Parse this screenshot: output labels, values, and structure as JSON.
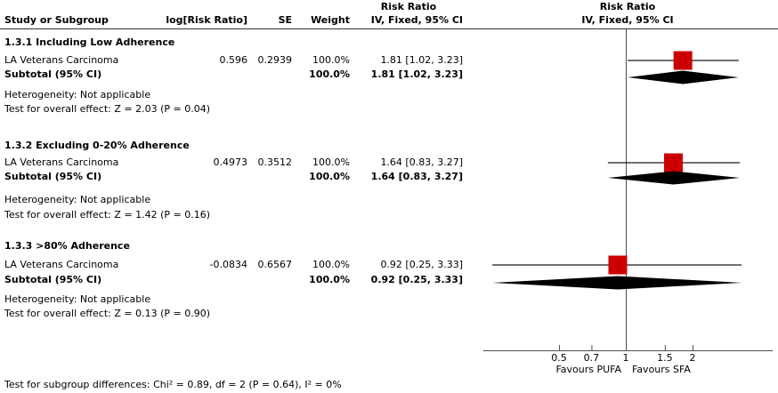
{
  "header": {
    "effect_title": "Risk Ratio",
    "col_study": "Study or Subgroup",
    "col_log_rr": "log[Risk Ratio]",
    "col_se": "SE",
    "col_weight": "Weight",
    "col_ci": "IV, Fixed, 95% CI",
    "plot_title": "Risk Ratio",
    "plot_method": "IV, Fixed, 95% CI"
  },
  "subgroups": [
    {
      "title": "1.3.1 Including Low Adherence",
      "studies": [
        {
          "name": "LA Veterans Carcinoma",
          "log_rr": "0.596",
          "se": "0.2939",
          "weight": "100.0%",
          "ci_text": "1.81 [1.02, 3.23]",
          "rr": 1.81,
          "low": 1.02,
          "high": 3.23
        }
      ],
      "subtotal": {
        "label": "Subtotal (95% CI)",
        "weight": "100.0%",
        "ci_text": "1.81 [1.02, 3.23]",
        "rr": 1.81,
        "low": 1.02,
        "high": 3.23
      },
      "heterogeneity": "Heterogeneity: Not applicable",
      "overall_effect": "Test for overall effect: Z = 2.03 (P = 0.04)"
    },
    {
      "title": "1.3.2 Excluding 0-20% Adherence",
      "studies": [
        {
          "name": "LA Veterans Carcinoma",
          "log_rr": "0.4973",
          "se": "0.3512",
          "weight": "100.0%",
          "ci_text": "1.64 [0.83, 3.27]",
          "rr": 1.64,
          "low": 0.83,
          "high": 3.27
        }
      ],
      "subtotal": {
        "label": "Subtotal (95% CI)",
        "weight": "100.0%",
        "ci_text": "1.64 [0.83, 3.27]",
        "rr": 1.64,
        "low": 0.83,
        "high": 3.27
      },
      "heterogeneity": "Heterogeneity: Not applicable",
      "overall_effect": "Test for overall effect: Z = 1.42 (P = 0.16)"
    },
    {
      "title": "1.3.3 >80% Adherence",
      "studies": [
        {
          "name": "LA Veterans Carcinoma",
          "log_rr": "-0.0834",
          "se": "0.6567",
          "weight": "100.0%",
          "ci_text": "0.92 [0.25, 3.33]",
          "rr": 0.92,
          "low": 0.25,
          "high": 3.33
        }
      ],
      "subtotal": {
        "label": "Subtotal (95% CI)",
        "weight": "100.0%",
        "ci_text": "0.92 [0.25, 3.33]",
        "rr": 0.92,
        "low": 0.25,
        "high": 3.33
      },
      "heterogeneity": "Heterogeneity: Not applicable",
      "overall_effect": "Test for overall effect: Z = 0.13 (P = 0.90)"
    }
  ],
  "axis": {
    "tick_values": [
      0.5,
      0.7,
      1,
      1.5,
      2
    ],
    "tick_labels": [
      "0.5",
      "0.7",
      "1",
      "1.5",
      "2"
    ],
    "favours_left": "Favours PUFA",
    "favours_right": "Favours SFA"
  },
  "footer": {
    "subgroup_test": "Test for subgroup differences: Chi² = 0.89, df = 2 (P = 0.64), I² = 0%"
  },
  "colors": {
    "marker": "#CC0000",
    "diamond": "#000000",
    "ci_line": "#1a1a1a",
    "axis_line": "#4d4d4d"
  },
  "chart_data": {
    "type": "forest_plot",
    "effect_measure": "Risk Ratio",
    "method": "IV, Fixed, 95% CI",
    "x_scale": "log",
    "x_ticks": [
      0.5,
      0.7,
      1,
      1.5,
      2
    ],
    "x_axis_labels": {
      "left": "Favours PUFA",
      "right": "Favours SFA"
    },
    "subgroups": [
      {
        "name": "1.3.1 Including Low Adherence",
        "studies": [
          {
            "study": "LA Veterans Carcinoma",
            "log_rr": 0.596,
            "se": 0.2939,
            "weight_pct": 100.0,
            "rr": 1.81,
            "ci": [
              1.02,
              3.23
            ]
          }
        ],
        "subtotal": {
          "rr": 1.81,
          "ci": [
            1.02,
            3.23
          ],
          "weight_pct": 100.0
        },
        "heterogeneity": "Not applicable",
        "overall_effect": {
          "Z": 2.03,
          "P": 0.04
        }
      },
      {
        "name": "1.3.2 Excluding 0-20% Adherence",
        "studies": [
          {
            "study": "LA Veterans Carcinoma",
            "log_rr": 0.4973,
            "se": 0.3512,
            "weight_pct": 100.0,
            "rr": 1.64,
            "ci": [
              0.83,
              3.27
            ]
          }
        ],
        "subtotal": {
          "rr": 1.64,
          "ci": [
            0.83,
            3.27
          ],
          "weight_pct": 100.0
        },
        "heterogeneity": "Not applicable",
        "overall_effect": {
          "Z": 1.42,
          "P": 0.16
        }
      },
      {
        "name": "1.3.3 >80% Adherence",
        "studies": [
          {
            "study": "LA Veterans Carcinoma",
            "log_rr": -0.0834,
            "se": 0.6567,
            "weight_pct": 100.0,
            "rr": 0.92,
            "ci": [
              0.25,
              3.33
            ]
          }
        ],
        "subtotal": {
          "rr": 0.92,
          "ci": [
            0.25,
            3.33
          ],
          "weight_pct": 100.0
        },
        "heterogeneity": "Not applicable",
        "overall_effect": {
          "Z": 0.13,
          "P": 0.9
        }
      }
    ],
    "subgroup_difference_test": {
      "chi2": 0.89,
      "df": 2,
      "P": 0.64,
      "I2_pct": 0
    }
  }
}
